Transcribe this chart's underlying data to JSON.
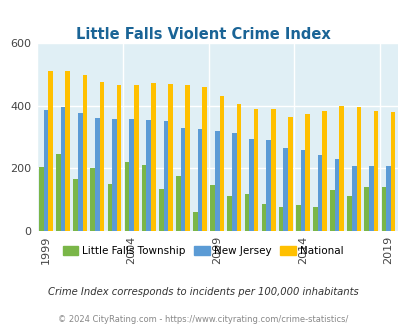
{
  "title": "Little Falls Violent Crime Index",
  "title_color": "#1a6496",
  "little_falls_color": "#7ab648",
  "new_jersey_color": "#5b9bd5",
  "national_color": "#ffc000",
  "bg_color": "#e0eff5",
  "ylim": [
    0,
    600
  ],
  "yticks": [
    0,
    200,
    400,
    600
  ],
  "xtick_years": [
    1999,
    2004,
    2009,
    2014,
    2019
  ],
  "legend_labels": [
    "Little Falls Township",
    "New Jersey",
    "National"
  ],
  "footnote1": "Crime Index corresponds to incidents per 100,000 inhabitants",
  "footnote2": "© 2024 CityRating.com - https://www.cityrating.com/crime-statistics/",
  "years": [
    1999,
    2000,
    2001,
    2002,
    2003,
    2004,
    2005,
    2006,
    2007,
    2008,
    2009,
    2010,
    2011,
    2012,
    2013,
    2014,
    2015,
    2016,
    2017,
    2018,
    2019
  ],
  "little_falls": [
    205,
    245,
    165,
    200,
    150,
    220,
    210,
    135,
    175,
    62,
    148,
    112,
    118,
    85,
    75,
    82,
    75,
    130,
    112,
    140,
    140
  ],
  "new_jersey": [
    385,
    395,
    375,
    362,
    357,
    357,
    355,
    352,
    330,
    325,
    318,
    312,
    295,
    290,
    265,
    258,
    242,
    230,
    208,
    207,
    207
  ],
  "national": [
    510,
    510,
    498,
    475,
    465,
    465,
    472,
    468,
    465,
    458,
    430,
    405,
    390,
    390,
    363,
    373,
    382,
    400,
    396,
    383,
    378
  ]
}
